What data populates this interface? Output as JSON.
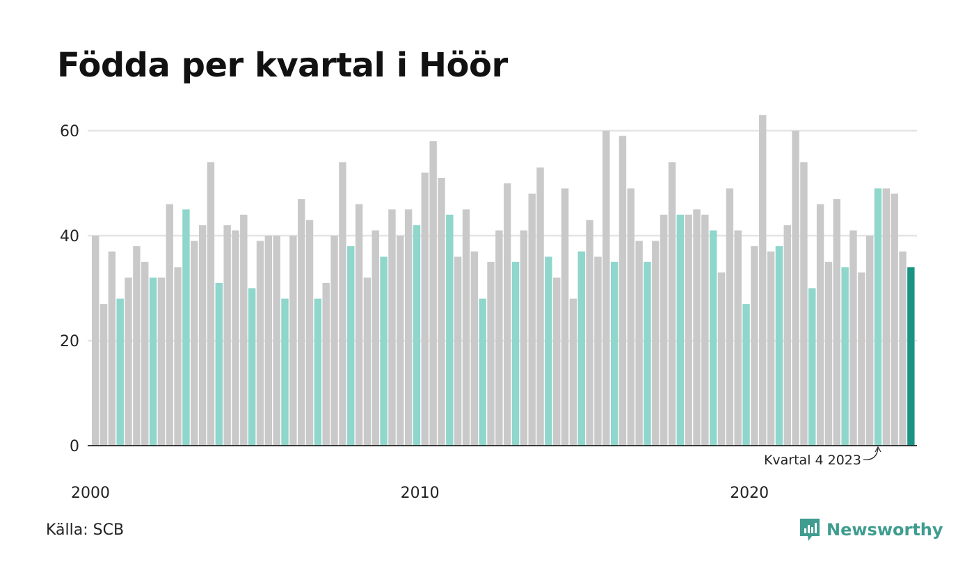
{
  "title": "Födda per kvartal i Höör",
  "source": "Källa: SCB",
  "brand": {
    "name": "Newsworthy",
    "icon": "bar-chart-bubble-icon"
  },
  "colors": {
    "default": "#c9c9c9",
    "q4": "#8fd6cc",
    "latest": "#1a9384",
    "grid": "#e4e4e4",
    "axis": "#222222",
    "brand": "#3f9c8f"
  },
  "chart_data": {
    "type": "bar",
    "title": "Födda per kvartal i Höör",
    "xlabel": "",
    "ylabel": "",
    "ylim": [
      0,
      65
    ],
    "yticks": [
      0,
      20,
      40,
      60
    ],
    "xticks": [
      {
        "label": "2000",
        "year": 2000
      },
      {
        "label": "2010",
        "year": 2010
      },
      {
        "label": "2020",
        "year": 2020
      }
    ],
    "grid": true,
    "start_year": 2000,
    "start_quarter": 1,
    "annotation": {
      "text": "Kvartal 4 2023",
      "year": 2023,
      "quarter": 4
    },
    "values": [
      40,
      27,
      37,
      28,
      32,
      38,
      35,
      32,
      32,
      46,
      34,
      45,
      39,
      42,
      54,
      31,
      42,
      41,
      44,
      30,
      39,
      40,
      40,
      28,
      40,
      47,
      43,
      28,
      31,
      40,
      54,
      38,
      46,
      32,
      41,
      36,
      45,
      40,
      45,
      42,
      52,
      58,
      51,
      44,
      36,
      45,
      37,
      28,
      35,
      41,
      50,
      35,
      41,
      48,
      53,
      36,
      32,
      49,
      28,
      37,
      43,
      36,
      60,
      35,
      59,
      49,
      39,
      35,
      39,
      44,
      54,
      44,
      44,
      45,
      44,
      41,
      33,
      49,
      41,
      27,
      38,
      63,
      37,
      38,
      42,
      60,
      54,
      30,
      46,
      35,
      47,
      34,
      41,
      33,
      40,
      49,
      49,
      48,
      37,
      34
    ]
  }
}
